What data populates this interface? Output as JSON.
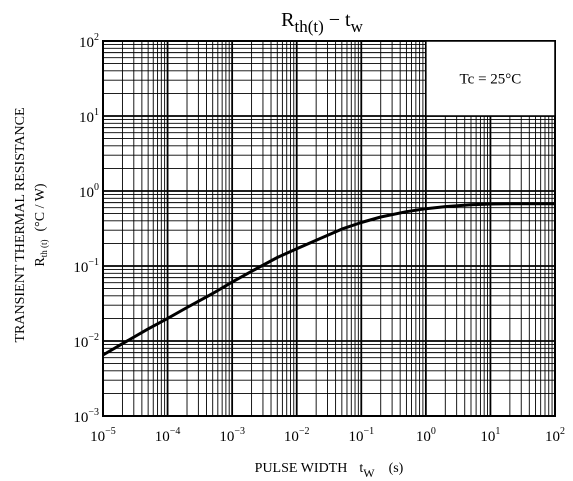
{
  "chart_data": {
    "type": "line",
    "title": {
      "main": "R",
      "sub": "th(t)",
      "dash": " − ",
      "var": "t",
      "var_sub": "w"
    },
    "xlabel": {
      "text": "PULSE WIDTH",
      "var": "t",
      "var_sub": "W",
      "unit": "(s)"
    },
    "ylabel": {
      "line1": "TRANSIENT THERMAL RESISTANCE",
      "line2_main": "R",
      "line2_sub": "th (t)",
      "line2_unit": "(°C / W)"
    },
    "x_scale": "log",
    "y_scale": "log",
    "xlim": [
      1e-05,
      100
    ],
    "ylim": [
      0.001,
      100
    ],
    "x_ticks": [
      {
        "base": "10",
        "exp": "−5",
        "value": 1e-05
      },
      {
        "base": "10",
        "exp": "−4",
        "value": 0.0001
      },
      {
        "base": "10",
        "exp": "−3",
        "value": 0.001
      },
      {
        "base": "10",
        "exp": "−2",
        "value": 0.01
      },
      {
        "base": "10",
        "exp": "−1",
        "value": 0.1
      },
      {
        "base": "10",
        "exp": "0",
        "value": 1
      },
      {
        "base": "10",
        "exp": "1",
        "value": 10
      },
      {
        "base": "10",
        "exp": "2",
        "value": 100
      }
    ],
    "y_ticks": [
      {
        "base": "10",
        "exp": "−3",
        "value": 0.001
      },
      {
        "base": "10",
        "exp": "−2",
        "value": 0.01
      },
      {
        "base": "10",
        "exp": "−1",
        "value": 0.1
      },
      {
        "base": "10",
        "exp": "0",
        "value": 1
      },
      {
        "base": "10",
        "exp": "1",
        "value": 10
      },
      {
        "base": "10",
        "exp": "2",
        "value": 100
      }
    ],
    "grid": true,
    "annotation": "Tc = 25°C",
    "series": [
      {
        "x": [
          1e-05,
          2e-05,
          5e-05,
          0.0001,
          0.0002,
          0.0005,
          0.001,
          0.002,
          0.005,
          0.01,
          0.02,
          0.05,
          0.1,
          0.2,
          0.5,
          1,
          2,
          5,
          10,
          20,
          50,
          100
        ],
        "y": [
          0.0065,
          0.0092,
          0.0145,
          0.02,
          0.028,
          0.043,
          0.061,
          0.085,
          0.13,
          0.17,
          0.22,
          0.31,
          0.38,
          0.45,
          0.53,
          0.58,
          0.62,
          0.655,
          0.67,
          0.675,
          0.675,
          0.675
        ]
      }
    ]
  }
}
